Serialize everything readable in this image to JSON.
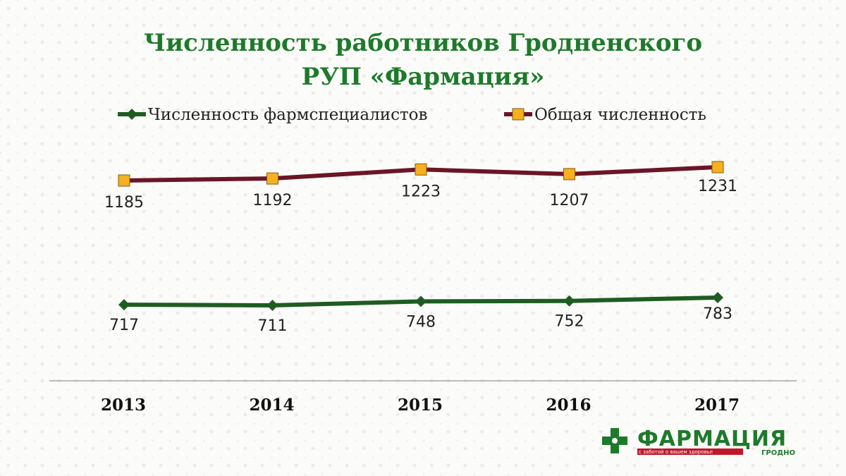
{
  "chart_data": {
    "type": "line",
    "title": [
      "Численность работников Гродненского",
      "РУП «Фармация»"
    ],
    "categories": [
      "2013",
      "2014",
      "2015",
      "2016",
      "2017"
    ],
    "series": [
      {
        "name": "Численность фармспециалистов",
        "values": [
          717,
          711,
          748,
          752,
          783
        ],
        "color": "#1e5c22",
        "marker": "diamond"
      },
      {
        "name": "Общая численность",
        "values": [
          1185,
          1192,
          1223,
          1207,
          1231
        ],
        "color": "#6b1526",
        "marker": "square",
        "marker_fill": "#f5b01f"
      }
    ],
    "legend": "top",
    "grid": false
  },
  "logo": {
    "name": "ФАРМАЦИЯ",
    "tagline": "с заботой о вашем здоровье",
    "city": "ГРОДНО"
  }
}
